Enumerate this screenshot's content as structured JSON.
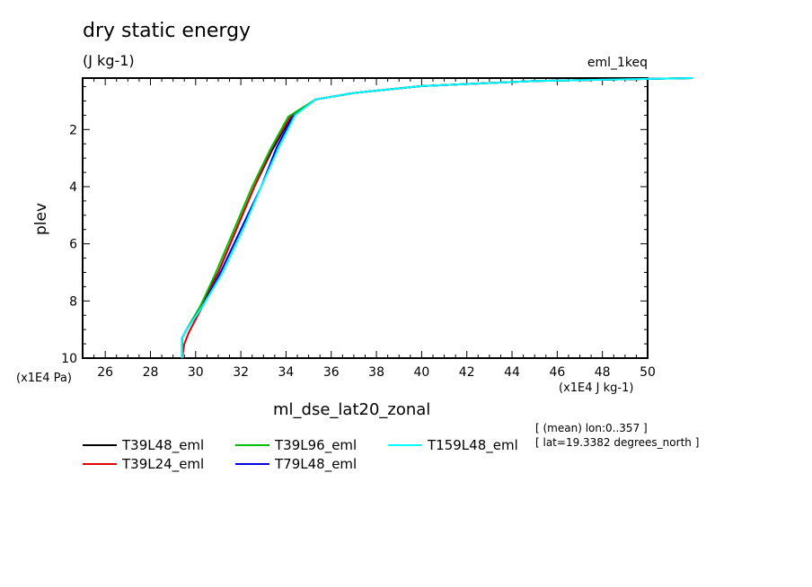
{
  "header": {
    "title": "dry static energy",
    "units": "(J kg-1)",
    "experiment": "eml_1keq"
  },
  "axes": {
    "y_unit_label": "(x1E4 Pa)",
    "x_unit_label": "(x1E4 J kg-1)"
  },
  "annotations": {
    "line1": "[ (mean) lon:0..357 ]",
    "line2": "[ lat=19.3382 degrees_north ]"
  },
  "chart_data": {
    "type": "line",
    "title": "dry static energy",
    "xlabel": "ml_dse_lat20_zonal",
    "ylabel": "plev",
    "xlim": [
      25,
      50
    ],
    "ylim": [
      10,
      0.2
    ],
    "x_ticks": [
      26,
      28,
      30,
      32,
      34,
      36,
      38,
      40,
      42,
      44,
      46,
      48,
      50
    ],
    "y_ticks": [
      2,
      4,
      6,
      8,
      10
    ],
    "legend_position": "bottom",
    "series": [
      {
        "name": "T39L48_eml",
        "color": "#000000",
        "x": [
          29.4,
          29.4,
          29.6,
          30.2,
          31.0,
          31.8,
          32.6,
          33.4,
          34.2,
          35.3,
          37.0,
          40.0,
          45.0,
          52.0
        ],
        "y": [
          10,
          9.3,
          9.0,
          8.2,
          7.0,
          5.5,
          4.0,
          2.7,
          1.6,
          0.95,
          0.72,
          0.48,
          0.3,
          0.2
        ]
      },
      {
        "name": "T39L24_eml",
        "color": "#e00000",
        "x": [
          29.4,
          29.5,
          29.7,
          30.3,
          31.0,
          31.9,
          32.6,
          33.4,
          34.2,
          35.3,
          37.0,
          40.0,
          45.0,
          52.0
        ],
        "y": [
          10,
          9.5,
          9.1,
          8.2,
          7.0,
          5.3,
          4.0,
          2.6,
          1.55,
          0.95,
          0.72,
          0.48,
          0.3,
          0.2
        ]
      },
      {
        "name": "T39L96_eml",
        "color": "#00c000",
        "x": [
          29.4,
          29.4,
          29.6,
          30.2,
          30.9,
          31.7,
          32.5,
          33.3,
          34.1,
          35.3,
          37.0,
          40.0,
          45.0,
          52.0
        ],
        "y": [
          10,
          9.3,
          9.0,
          8.2,
          7.0,
          5.5,
          4.0,
          2.7,
          1.55,
          0.95,
          0.72,
          0.48,
          0.3,
          0.2
        ]
      },
      {
        "name": "T79L48_eml",
        "color": "#0000e0",
        "x": [
          29.4,
          29.4,
          29.6,
          30.3,
          31.1,
          32.0,
          32.9,
          33.6,
          34.3,
          35.3,
          37.0,
          40.0,
          45.0,
          52.0
        ],
        "y": [
          10,
          9.3,
          9.0,
          8.2,
          7.0,
          5.5,
          4.0,
          2.6,
          1.55,
          0.95,
          0.72,
          0.48,
          0.3,
          0.2
        ]
      },
      {
        "name": "T159L48_eml",
        "color": "#00ffff",
        "x": [
          29.4,
          29.4,
          29.6,
          30.3,
          31.2,
          32.1,
          32.9,
          33.7,
          34.4,
          35.3,
          37.0,
          40.0,
          45.0,
          52.0
        ],
        "y": [
          10,
          9.3,
          9.0,
          8.2,
          7.0,
          5.5,
          4.0,
          2.6,
          1.5,
          0.95,
          0.72,
          0.48,
          0.3,
          0.2
        ]
      }
    ]
  }
}
